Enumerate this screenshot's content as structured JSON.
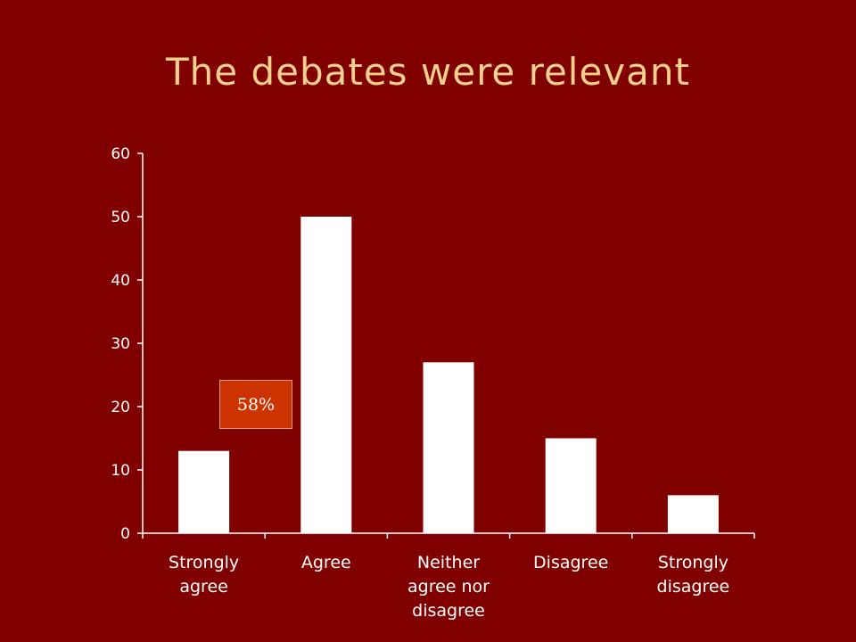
{
  "slide": {
    "title": "The debates were relevant",
    "callout": "58%"
  },
  "chart_data": {
    "type": "bar",
    "title": "The debates were relevant",
    "categories": [
      [
        "Strongly",
        "agree"
      ],
      [
        "Agree"
      ],
      [
        "Neither",
        "agree nor",
        "disagree"
      ],
      [
        "Disagree"
      ],
      [
        "Strongly",
        "disagree"
      ]
    ],
    "values": [
      13,
      50,
      27,
      15,
      6
    ],
    "ylim": [
      0,
      60
    ],
    "yticks": [
      0,
      10,
      20,
      30,
      40,
      50,
      60
    ],
    "xlabel": "",
    "ylabel": "",
    "grid": false,
    "legend": "none",
    "annotations": [
      "58%"
    ],
    "colors": {
      "background": "#800000",
      "bar": "#ffffff",
      "axis": "#ffffff",
      "title": "#f0d08c",
      "callout": "#cc3300"
    }
  }
}
